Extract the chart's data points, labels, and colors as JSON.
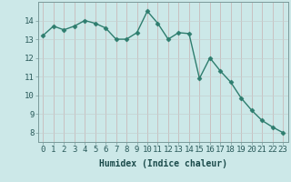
{
  "x": [
    0,
    1,
    2,
    3,
    4,
    5,
    6,
    7,
    8,
    9,
    10,
    11,
    12,
    13,
    14,
    15,
    16,
    17,
    18,
    19,
    20,
    21,
    22,
    23
  ],
  "y": [
    13.2,
    13.7,
    13.5,
    13.7,
    14.0,
    13.85,
    13.6,
    13.0,
    13.0,
    13.35,
    14.5,
    13.85,
    13.0,
    13.35,
    13.3,
    10.9,
    12.0,
    11.3,
    10.7,
    9.85,
    9.2,
    8.65,
    8.3,
    8.0
  ],
  "line_color": "#2e7d6e",
  "marker": "D",
  "marker_size": 2.5,
  "bg_color": "#cce8e8",
  "grid_color_v": "#c4d4d4",
  "grid_color_h": "#c8b8b8",
  "xlabel": "Humidex (Indice chaleur)",
  "xlim": [
    -0.5,
    23.5
  ],
  "ylim": [
    7.5,
    15.0
  ],
  "yticks": [
    8,
    9,
    10,
    11,
    12,
    13,
    14
  ],
  "xticks": [
    0,
    1,
    2,
    3,
    4,
    5,
    6,
    7,
    8,
    9,
    10,
    11,
    12,
    13,
    14,
    15,
    16,
    17,
    18,
    19,
    20,
    21,
    22,
    23
  ],
  "xlabel_fontsize": 7,
  "tick_fontsize": 6.5
}
